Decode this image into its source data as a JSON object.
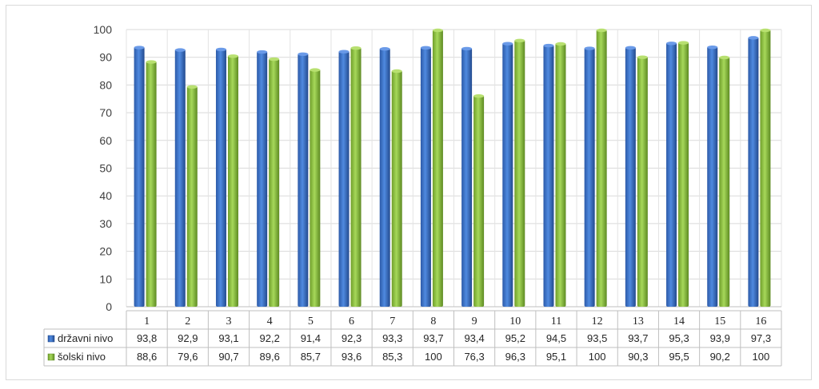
{
  "chart_data": {
    "type": "bar",
    "categories": [
      "1",
      "2",
      "3",
      "4",
      "5",
      "6",
      "7",
      "8",
      "9",
      "10",
      "11",
      "12",
      "13",
      "14",
      "15",
      "16"
    ],
    "series": [
      {
        "name": "državni nivo",
        "color": "#3a6fc4",
        "values": [
          93.8,
          92.9,
          93.1,
          92.2,
          91.4,
          92.3,
          93.3,
          93.7,
          93.4,
          95.2,
          94.5,
          93.5,
          93.7,
          95.3,
          93.9,
          97.3
        ],
        "labels": [
          "93,8",
          "92,9",
          "93,1",
          "92,2",
          "91,4",
          "92,3",
          "93,3",
          "93,7",
          "93,4",
          "95,2",
          "94,5",
          "93,5",
          "93,7",
          "95,3",
          "93,9",
          "97,3"
        ]
      },
      {
        "name": "šolski nivo",
        "color": "#8dc63f",
        "values": [
          88.6,
          79.6,
          90.7,
          89.6,
          85.7,
          93.6,
          85.3,
          100,
          76.3,
          96.3,
          95.1,
          100,
          90.3,
          95.5,
          90.2,
          100
        ],
        "labels": [
          "88,6",
          "79,6",
          "90,7",
          "89,6",
          "85,7",
          "93,6",
          "85,3",
          "100",
          "76,3",
          "96,3",
          "95,1",
          "100",
          "90,3",
          "95,5",
          "90,2",
          "100"
        ]
      }
    ],
    "yticks": [
      "0",
      "10",
      "20",
      "30",
      "40",
      "50",
      "60",
      "70",
      "80",
      "90",
      "100"
    ],
    "ylim": [
      0,
      100
    ],
    "grid": true,
    "legend": "data-table"
  }
}
